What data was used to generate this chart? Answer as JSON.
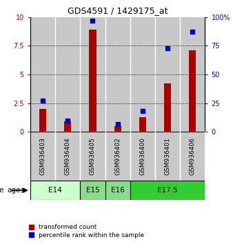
{
  "title": "GDS4591 / 1429175_at",
  "samples": [
    "GSM936403",
    "GSM936404",
    "GSM936405",
    "GSM936402",
    "GSM936400",
    "GSM936401",
    "GSM936406"
  ],
  "red_values": [
    2.0,
    0.9,
    8.9,
    0.5,
    1.3,
    4.2,
    7.1
  ],
  "blue_values": [
    27,
    10,
    97,
    7,
    18,
    73,
    87
  ],
  "age_groups": [
    {
      "label": "E14",
      "start": 0,
      "end": 1,
      "color": "#ccffcc"
    },
    {
      "label": "E15",
      "start": 2,
      "end": 2,
      "color": "#88dd88"
    },
    {
      "label": "E16",
      "start": 3,
      "end": 3,
      "color": "#88dd88"
    },
    {
      "label": "E17.5",
      "start": 4,
      "end": 6,
      "color": "#33cc33"
    }
  ],
  "red_color": "#aa0000",
  "blue_color": "#0000cc",
  "bar_bg_color": "#c8c8c8",
  "sample_bg_color": "#c8c8c8",
  "ylim_left": [
    0,
    10
  ],
  "ylim_right": [
    0,
    100
  ],
  "yticks_left": [
    0,
    2.5,
    5,
    7.5,
    10
  ],
  "yticks_right": [
    0,
    25,
    50,
    75,
    100
  ],
  "ytick_labels_left": [
    "0",
    "2.5",
    "5",
    "7.5",
    "10"
  ],
  "ytick_labels_right": [
    "0",
    "25",
    "50",
    "75",
    "100%"
  ],
  "legend_red": "transformed count",
  "legend_blue": "percentile rank within the sample",
  "age_label": "age",
  "bar_width": 0.28,
  "marker_size": 4
}
